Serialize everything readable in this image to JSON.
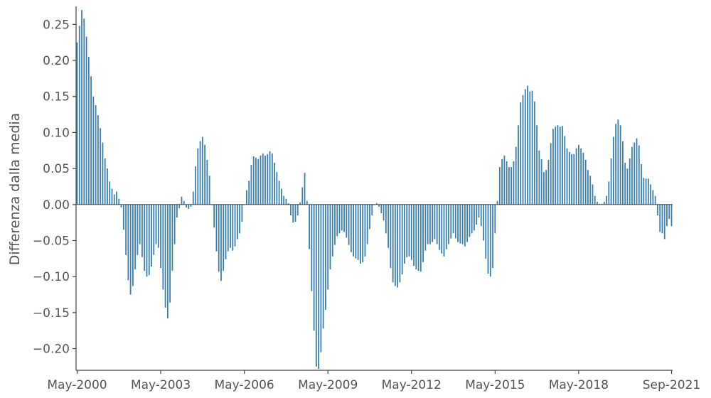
{
  "chart_data": {
    "type": "bar",
    "title": "",
    "xlabel": "",
    "ylabel": "Differenza dalla media",
    "bar_color": "#3a7fb0",
    "ylim": [
      -0.23,
      0.275
    ],
    "grid": false,
    "legend": "none",
    "y_ticks": [
      {
        "value": 0.25,
        "label": "0.25"
      },
      {
        "value": 0.2,
        "label": "0.20"
      },
      {
        "value": 0.15,
        "label": "0.15"
      },
      {
        "value": 0.1,
        "label": "0.10"
      },
      {
        "value": 0.05,
        "label": "0.05"
      },
      {
        "value": 0.0,
        "label": "0.00"
      },
      {
        "value": -0.05,
        "label": "−0.05"
      },
      {
        "value": -0.1,
        "label": "−0.10"
      },
      {
        "value": -0.15,
        "label": "−0.15"
      },
      {
        "value": -0.2,
        "label": "−0.20"
      }
    ],
    "x_ticks": [
      {
        "index": 0,
        "label": "May-2000"
      },
      {
        "index": 36,
        "label": "May-2003"
      },
      {
        "index": 72,
        "label": "May-2006"
      },
      {
        "index": 108,
        "label": "May-2009"
      },
      {
        "index": 144,
        "label": "May-2012"
      },
      {
        "index": 180,
        "label": "May-2015"
      },
      {
        "index": 216,
        "label": "May-2018"
      },
      {
        "index": 256,
        "label": "Sep-2021"
      }
    ],
    "x_start": "May-2000",
    "x_end": "Sep-2021",
    "bar_spacing": "monthly",
    "knots": [
      [
        0,
        0.225
      ],
      [
        1,
        0.248
      ],
      [
        2,
        0.27
      ],
      [
        3,
        0.258
      ],
      [
        4,
        0.233
      ],
      [
        5,
        0.205
      ],
      [
        6,
        0.178
      ],
      [
        7,
        0.15
      ],
      [
        8,
        0.138
      ],
      [
        9,
        0.124
      ],
      [
        10,
        0.106
      ],
      [
        11,
        0.086
      ],
      [
        12,
        0.064
      ],
      [
        13,
        0.05
      ],
      [
        14,
        0.032
      ],
      [
        15,
        0.022
      ],
      [
        16,
        0.014
      ],
      [
        17,
        0.018
      ],
      [
        18,
        0.008
      ],
      [
        19,
        -0.004
      ],
      [
        20,
        -0.035
      ],
      [
        21,
        -0.07
      ],
      [
        22,
        -0.105
      ],
      [
        23,
        -0.125
      ],
      [
        24,
        -0.113
      ],
      [
        25,
        -0.09
      ],
      [
        26,
        -0.07
      ],
      [
        27,
        -0.055
      ],
      [
        28,
        -0.073
      ],
      [
        29,
        -0.092
      ],
      [
        30,
        -0.1
      ],
      [
        31,
        -0.098
      ],
      [
        32,
        -0.086
      ],
      [
        33,
        -0.07
      ],
      [
        34,
        -0.055
      ],
      [
        35,
        -0.06
      ],
      [
        36,
        -0.088
      ],
      [
        37,
        -0.118
      ],
      [
        38,
        -0.143
      ],
      [
        39,
        -0.158
      ],
      [
        40,
        -0.136
      ],
      [
        41,
        -0.092
      ],
      [
        42,
        -0.055
      ],
      [
        43,
        -0.018
      ],
      [
        44,
        -0.005
      ],
      [
        45,
        0.011
      ],
      [
        46,
        0.005
      ],
      [
        47,
        -0.004
      ],
      [
        48,
        -0.006
      ],
      [
        49,
        -0.003
      ],
      [
        50,
        0.018
      ],
      [
        51,
        0.053
      ],
      [
        52,
        0.078
      ],
      [
        53,
        0.088
      ],
      [
        54,
        0.094
      ],
      [
        55,
        0.083
      ],
      [
        56,
        0.062
      ],
      [
        57,
        0.04
      ],
      [
        58,
        0.0
      ],
      [
        59,
        -0.032
      ],
      [
        60,
        -0.065
      ],
      [
        61,
        -0.093
      ],
      [
        62,
        -0.106
      ],
      [
        63,
        -0.092
      ],
      [
        64,
        -0.076
      ],
      [
        65,
        -0.065
      ],
      [
        66,
        -0.06
      ],
      [
        67,
        -0.064
      ],
      [
        68,
        -0.058
      ],
      [
        69,
        -0.048
      ],
      [
        70,
        -0.04
      ],
      [
        71,
        -0.024
      ],
      [
        72,
        0.0
      ],
      [
        73,
        0.02
      ],
      [
        74,
        0.033
      ],
      [
        75,
        0.055
      ],
      [
        76,
        0.067
      ],
      [
        77,
        0.065
      ],
      [
        78,
        0.063
      ],
      [
        79,
        0.068
      ],
      [
        80,
        0.071
      ],
      [
        81,
        0.068
      ],
      [
        82,
        0.07
      ],
      [
        83,
        0.074
      ],
      [
        84,
        0.071
      ],
      [
        85,
        0.058
      ],
      [
        86,
        0.045
      ],
      [
        87,
        0.033
      ],
      [
        88,
        0.022
      ],
      [
        89,
        0.012
      ],
      [
        90,
        0.008
      ],
      [
        91,
        0.002
      ],
      [
        92,
        -0.015
      ],
      [
        93,
        -0.025
      ],
      [
        94,
        -0.024
      ],
      [
        95,
        -0.015
      ],
      [
        96,
        0.003
      ],
      [
        97,
        0.024
      ],
      [
        98,
        0.044
      ],
      [
        99,
        0.005
      ],
      [
        100,
        -0.062
      ],
      [
        101,
        -0.12
      ],
      [
        102,
        -0.175
      ],
      [
        103,
        -0.225
      ],
      [
        104,
        -0.228
      ],
      [
        105,
        -0.205
      ],
      [
        106,
        -0.172
      ],
      [
        107,
        -0.146
      ],
      [
        108,
        -0.118
      ],
      [
        109,
        -0.09
      ],
      [
        110,
        -0.072
      ],
      [
        111,
        -0.056
      ],
      [
        112,
        -0.044
      ],
      [
        113,
        -0.04
      ],
      [
        114,
        -0.036
      ],
      [
        115,
        -0.038
      ],
      [
        116,
        -0.046
      ],
      [
        117,
        -0.056
      ],
      [
        118,
        -0.066
      ],
      [
        119,
        -0.072
      ],
      [
        120,
        -0.075
      ],
      [
        121,
        -0.077
      ],
      [
        122,
        -0.082
      ],
      [
        123,
        -0.08
      ],
      [
        124,
        -0.072
      ],
      [
        125,
        -0.055
      ],
      [
        126,
        -0.034
      ],
      [
        127,
        -0.015
      ],
      [
        128,
        0.0
      ],
      [
        129,
        0.002
      ],
      [
        130,
        -0.003
      ],
      [
        131,
        -0.012
      ],
      [
        132,
        -0.022
      ],
      [
        133,
        -0.04
      ],
      [
        134,
        -0.06
      ],
      [
        135,
        -0.088
      ],
      [
        136,
        -0.108
      ],
      [
        137,
        -0.113
      ],
      [
        138,
        -0.115
      ],
      [
        139,
        -0.108
      ],
      [
        140,
        -0.097
      ],
      [
        141,
        -0.082
      ],
      [
        142,
        -0.073
      ],
      [
        143,
        -0.072
      ],
      [
        144,
        -0.077
      ],
      [
        145,
        -0.085
      ],
      [
        146,
        -0.09
      ],
      [
        147,
        -0.092
      ],
      [
        148,
        -0.093
      ],
      [
        149,
        -0.08
      ],
      [
        150,
        -0.064
      ],
      [
        151,
        -0.055
      ],
      [
        152,
        -0.055
      ],
      [
        153,
        -0.052
      ],
      [
        154,
        -0.048
      ],
      [
        155,
        -0.055
      ],
      [
        156,
        -0.063
      ],
      [
        157,
        -0.068
      ],
      [
        158,
        -0.072
      ],
      [
        159,
        -0.062
      ],
      [
        160,
        -0.055
      ],
      [
        161,
        -0.047
      ],
      [
        162,
        -0.04
      ],
      [
        163,
        -0.047
      ],
      [
        164,
        -0.052
      ],
      [
        165,
        -0.054
      ],
      [
        166,
        -0.055
      ],
      [
        167,
        -0.058
      ],
      [
        168,
        -0.052
      ],
      [
        169,
        -0.045
      ],
      [
        170,
        -0.04
      ],
      [
        171,
        -0.036
      ],
      [
        172,
        -0.028
      ],
      [
        173,
        -0.018
      ],
      [
        174,
        -0.03
      ],
      [
        175,
        -0.05
      ],
      [
        176,
        -0.075
      ],
      [
        177,
        -0.096
      ],
      [
        178,
        -0.1
      ],
      [
        179,
        -0.088
      ],
      [
        180,
        -0.04
      ],
      [
        181,
        0.005
      ],
      [
        182,
        0.052
      ],
      [
        183,
        0.063
      ],
      [
        184,
        0.068
      ],
      [
        185,
        0.06
      ],
      [
        186,
        0.052
      ],
      [
        187,
        0.052
      ],
      [
        188,
        0.06
      ],
      [
        189,
        0.08
      ],
      [
        190,
        0.11
      ],
      [
        191,
        0.142
      ],
      [
        192,
        0.152
      ],
      [
        193,
        0.16
      ],
      [
        194,
        0.165
      ],
      [
        195,
        0.157
      ],
      [
        196,
        0.158
      ],
      [
        197,
        0.143
      ],
      [
        198,
        0.11
      ],
      [
        199,
        0.075
      ],
      [
        200,
        0.063
      ],
      [
        201,
        0.045
      ],
      [
        202,
        0.048
      ],
      [
        203,
        0.062
      ],
      [
        204,
        0.085
      ],
      [
        205,
        0.105
      ],
      [
        206,
        0.108
      ],
      [
        207,
        0.11
      ],
      [
        208,
        0.108
      ],
      [
        209,
        0.109
      ],
      [
        210,
        0.095
      ],
      [
        211,
        0.078
      ],
      [
        212,
        0.073
      ],
      [
        213,
        0.07
      ],
      [
        214,
        0.07
      ],
      [
        215,
        0.078
      ],
      [
        216,
        0.083
      ],
      [
        217,
        0.078
      ],
      [
        218,
        0.072
      ],
      [
        219,
        0.062
      ],
      [
        220,
        0.048
      ],
      [
        221,
        0.04
      ],
      [
        222,
        0.028
      ],
      [
        223,
        0.012
      ],
      [
        224,
        0.004
      ],
      [
        225,
        0.001
      ],
      [
        226,
        0.001
      ],
      [
        227,
        0.004
      ],
      [
        228,
        0.012
      ],
      [
        229,
        0.032
      ],
      [
        230,
        0.064
      ],
      [
        231,
        0.094
      ],
      [
        232,
        0.112
      ],
      [
        233,
        0.118
      ],
      [
        234,
        0.11
      ],
      [
        235,
        0.088
      ],
      [
        236,
        0.058
      ],
      [
        237,
        0.05
      ],
      [
        238,
        0.064
      ],
      [
        239,
        0.08
      ],
      [
        240,
        0.086
      ],
      [
        241,
        0.092
      ],
      [
        242,
        0.082
      ],
      [
        243,
        0.056
      ],
      [
        244,
        0.037
      ],
      [
        245,
        0.036
      ],
      [
        246,
        0.036
      ],
      [
        247,
        0.028
      ],
      [
        248,
        0.02
      ],
      [
        249,
        0.012
      ],
      [
        250,
        -0.015
      ],
      [
        251,
        -0.038
      ],
      [
        252,
        -0.04
      ],
      [
        253,
        -0.048
      ],
      [
        254,
        -0.03
      ],
      [
        255,
        -0.02
      ],
      [
        256,
        -0.03
      ]
    ]
  }
}
